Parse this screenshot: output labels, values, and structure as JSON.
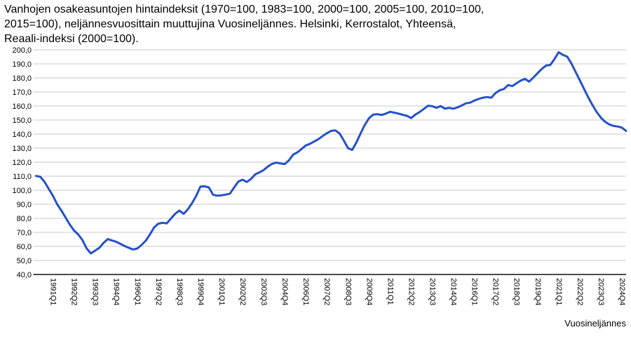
{
  "header": {
    "title_full": "Vanhojen osakeasuntojen hintaindeksit (1970=100, 1983=100, 2000=100, 2005=100, 2010=100, 2015=100), neljännesvuosittain muuttujina Vuosineljännes. Helsinki, Kerrostalot, Yhteensä, Reaali-indeksi (2000=100).",
    "title_lines": [
      "Vanhojen osakeasuntojen hintaindeksit (1970=100, 1983=100, 2000=100, 2005=100, 2010=100,",
      "2015=100), neljännesvuosittain muuttujina Vuosineljännes. Helsinki, Kerrostalot, Yhteensä,",
      "Reaali-indeksi (2000=100)."
    ]
  },
  "chart_data": {
    "type": "line",
    "title": "Vanhojen osakeasuntojen hintaindeksit, Helsinki, Kerrostalot, Yhteensä, Reaali-indeksi (2000=100)",
    "x_axis_label": "Vuosineljännes",
    "ylabel": "",
    "ylim": [
      40,
      200
    ],
    "y_step": 10,
    "grid": "horizontal",
    "legend": "none",
    "line_color": "#2351c8",
    "grid_color": "#c9c9c9",
    "axis_color": "#333333",
    "line_width": 3,
    "y_tick_labels": [
      "200,0",
      "190,0",
      "180,0",
      "170,0",
      "160,0",
      "150,0",
      "140,0",
      "130,0",
      "120,0",
      "110,0",
      "100,0",
      "90,0",
      "80,0",
      "70,0",
      "60,0",
      "50,0",
      "40,0"
    ],
    "x_tick_labels": [
      "1991Q1",
      "1992Q2",
      "1993Q3",
      "1994Q4",
      "1996Q1",
      "1997Q2",
      "1998Q3",
      "1999Q4",
      "2001Q1",
      "2002Q2",
      "2003Q3",
      "2004Q4",
      "2006Q1",
      "2007Q2",
      "2008Q3",
      "2009Q4",
      "2011Q1",
      "2012Q2",
      "2013Q3",
      "2014Q4",
      "2016Q1",
      "2017Q2",
      "2018Q3",
      "2019Q4",
      "2021Q1",
      "2022Q2",
      "2023Q3",
      "2024Q4"
    ],
    "series": [
      {
        "name": "Reaali-indeksi (2000=100)",
        "quarters": [
          "1990Q1",
          "1990Q2",
          "1990Q3",
          "1990Q4",
          "1991Q1",
          "1991Q2",
          "1991Q3",
          "1991Q4",
          "1992Q1",
          "1992Q2",
          "1992Q3",
          "1992Q4",
          "1993Q1",
          "1993Q2",
          "1993Q3",
          "1993Q4",
          "1994Q1",
          "1994Q2",
          "1994Q3",
          "1994Q4",
          "1995Q1",
          "1995Q2",
          "1995Q3",
          "1995Q4",
          "1996Q1",
          "1996Q2",
          "1996Q3",
          "1996Q4",
          "1997Q1",
          "1997Q2",
          "1997Q3",
          "1997Q4",
          "1998Q1",
          "1998Q2",
          "1998Q3",
          "1998Q4",
          "1999Q1",
          "1999Q2",
          "1999Q3",
          "1999Q4",
          "2000Q1",
          "2000Q2",
          "2000Q3",
          "2000Q4",
          "2001Q1",
          "2001Q2",
          "2001Q3",
          "2001Q4",
          "2002Q1",
          "2002Q2",
          "2002Q3",
          "2002Q4",
          "2003Q1",
          "2003Q2",
          "2003Q3",
          "2003Q4",
          "2004Q1",
          "2004Q2",
          "2004Q3",
          "2004Q4",
          "2005Q1",
          "2005Q2",
          "2005Q3",
          "2005Q4",
          "2006Q1",
          "2006Q2",
          "2006Q3",
          "2006Q4",
          "2007Q1",
          "2007Q2",
          "2007Q3",
          "2007Q4",
          "2008Q1",
          "2008Q2",
          "2008Q3",
          "2008Q4",
          "2009Q1",
          "2009Q2",
          "2009Q3",
          "2009Q4",
          "2010Q1",
          "2010Q2",
          "2010Q3",
          "2010Q4",
          "2011Q1",
          "2011Q2",
          "2011Q3",
          "2011Q4",
          "2012Q1",
          "2012Q2",
          "2012Q3",
          "2012Q4",
          "2013Q1",
          "2013Q2",
          "2013Q3",
          "2013Q4",
          "2014Q1",
          "2014Q2",
          "2014Q3",
          "2014Q4",
          "2015Q1",
          "2015Q2",
          "2015Q3",
          "2015Q4",
          "2016Q1",
          "2016Q2",
          "2016Q3",
          "2016Q4",
          "2017Q1",
          "2017Q2",
          "2017Q3",
          "2017Q4",
          "2018Q1",
          "2018Q2",
          "2018Q3",
          "2018Q4",
          "2019Q1",
          "2019Q2",
          "2019Q3",
          "2019Q4",
          "2020Q1",
          "2020Q2",
          "2020Q3",
          "2020Q4",
          "2021Q1",
          "2021Q2",
          "2021Q3",
          "2021Q4",
          "2022Q1",
          "2022Q2",
          "2022Q3",
          "2022Q4",
          "2023Q1",
          "2023Q2",
          "2023Q3",
          "2023Q4",
          "2024Q1",
          "2024Q2",
          "2024Q3",
          "2024Q4",
          "2025Q1"
        ],
        "values": [
          110.2,
          109.6,
          106.0,
          101.0,
          96.0,
          90.0,
          85.5,
          80.5,
          75.5,
          71.3,
          68.5,
          64.5,
          58.5,
          55.0,
          57.0,
          59.0,
          62.5,
          65.2,
          64.2,
          63.3,
          61.8,
          60.3,
          59.0,
          57.8,
          58.5,
          61.0,
          64.0,
          68.5,
          73.5,
          76.2,
          76.8,
          76.4,
          79.8,
          83.3,
          85.5,
          83.2,
          86.4,
          90.8,
          96.0,
          102.6,
          102.8,
          102.0,
          96.8,
          96.1,
          96.4,
          96.9,
          97.6,
          102.0,
          106.2,
          107.5,
          105.9,
          108.0,
          111.4,
          112.7,
          114.4,
          116.9,
          118.8,
          119.7,
          119.1,
          118.6,
          121.3,
          125.4,
          127.0,
          129.4,
          131.9,
          133.1,
          134.7,
          136.4,
          138.6,
          140.6,
          142.3,
          142.6,
          140.5,
          135.5,
          130.0,
          128.7,
          134.0,
          140.5,
          146.5,
          151.3,
          153.9,
          154.2,
          153.6,
          154.6,
          155.9,
          155.2,
          154.6,
          153.7,
          153.0,
          151.4,
          153.9,
          155.7,
          157.9,
          160.2,
          159.9,
          158.7,
          160.0,
          158.1,
          158.7,
          158.1,
          159.0,
          160.4,
          161.9,
          162.4,
          163.9,
          165.0,
          165.9,
          166.4,
          165.9,
          169.2,
          171.2,
          172.1,
          174.9,
          174.2,
          176.2,
          178.1,
          179.3,
          177.4,
          180.3,
          183.4,
          186.4,
          188.8,
          189.2,
          193.4,
          198.3,
          196.4,
          195.2,
          190.4,
          184.4,
          178.4,
          172.3,
          166.3,
          160.8,
          155.8,
          151.8,
          148.8,
          146.9,
          145.8,
          145.4,
          144.6,
          142.3
        ]
      }
    ]
  }
}
